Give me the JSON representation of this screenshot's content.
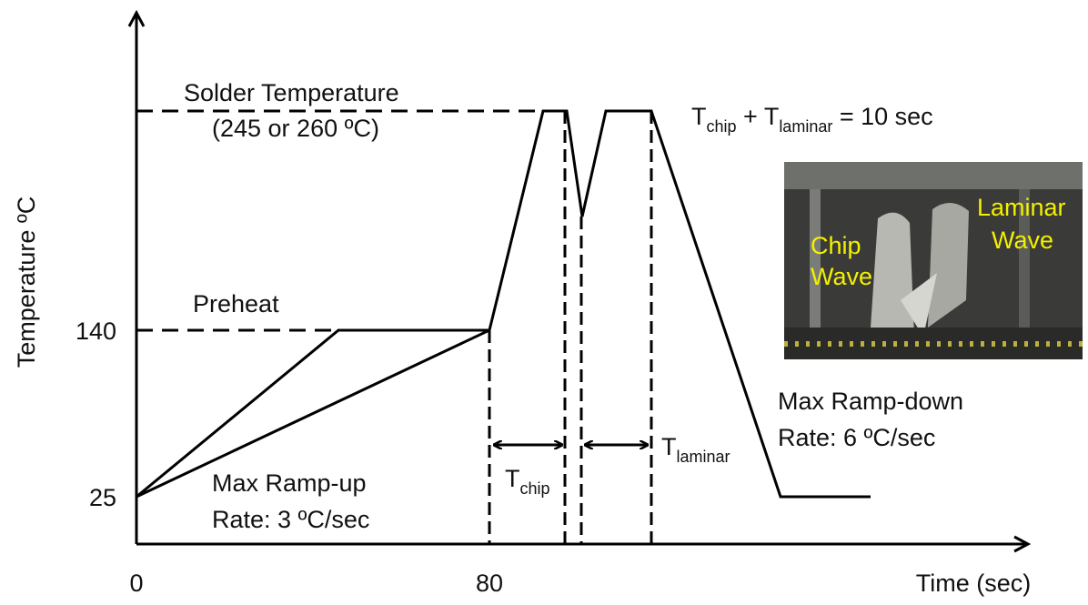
{
  "axes": {
    "y_label": "Temperature ºC",
    "x_label": "Time (sec)",
    "y_ticks": [
      "140",
      "25"
    ],
    "x_ticks": [
      "0",
      "80"
    ]
  },
  "labels": {
    "solder_temperature": "Solder Temperature",
    "solder_values": "(245 or 260 ºC)",
    "preheat": "Preheat",
    "ramp_up": [
      "Max Ramp-up",
      "Rate:  3 ºC/sec"
    ],
    "ramp_down": [
      "Max Ramp-down",
      "Rate:  6 ºC/sec"
    ],
    "t_chip": {
      "base": "T",
      "sub": "chip"
    },
    "t_laminar": {
      "base": "T",
      "sub": "laminar"
    },
    "equation": {
      "t1": "T",
      "sub1": "chip",
      "plus": " + T",
      "sub2": "laminar",
      "rest": " = 10 sec"
    }
  },
  "photo": {
    "chip_wave": [
      "Chip",
      "Wave"
    ],
    "laminar_wave": [
      "Laminar",
      "Wave"
    ]
  }
}
